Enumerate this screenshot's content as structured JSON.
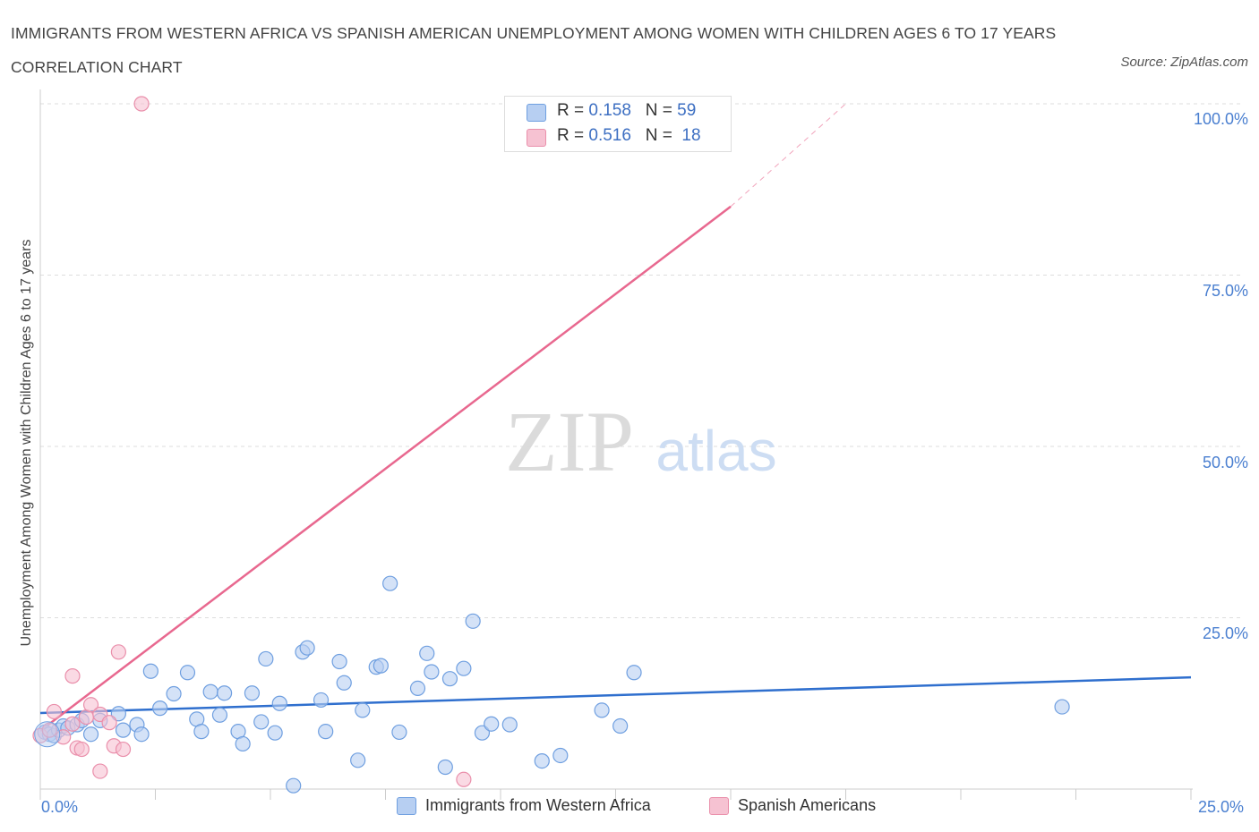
{
  "header": {
    "title": "IMMIGRANTS FROM WESTERN AFRICA VS SPANISH AMERICAN UNEMPLOYMENT AMONG WOMEN WITH CHILDREN AGES 6 TO 17 YEARS CORRELATION CHART",
    "source": "Source: ZipAtlas.com"
  },
  "legend": {
    "series1": {
      "r_label": "R = ",
      "r_value": "0.158",
      "n_label": "N = ",
      "n_value": "59"
    },
    "series2": {
      "r_label": "R = ",
      "r_value": "0.516",
      "n_label": "N = ",
      "n_value": "18"
    }
  },
  "watermark": {
    "zip": "ZIP",
    "atlas": "atlas"
  },
  "colors": {
    "blue_fill": "#b7cff2",
    "blue_stroke": "#6f9fe0",
    "blue_line": "#2f6fce",
    "pink_fill": "#f6c2d2",
    "pink_stroke": "#ea8fab",
    "pink_line": "#e8688f",
    "tick_text": "#4a7fd0",
    "grid": "#dddddd"
  },
  "chart_data": {
    "type": "scatter",
    "title": "IMMIGRANTS FROM WESTERN AFRICA VS SPANISH AMERICAN UNEMPLOYMENT AMONG WOMEN WITH CHILDREN AGES 6 TO 17 YEARS CORRELATION CHART",
    "xlabel": "",
    "ylabel": "Unemployment Among Women with Children Ages 6 to 17 years",
    "xlim": [
      0,
      25
    ],
    "ylim": [
      0,
      100
    ],
    "x_tick_labels": [
      "0.0%",
      "25.0%"
    ],
    "y_tick_labels": [
      "25.0%",
      "50.0%",
      "75.0%",
      "100.0%"
    ],
    "y_ticks": [
      25,
      50,
      75,
      100
    ],
    "grid": true,
    "legend_position": "top-center",
    "series": [
      {
        "name": "Immigrants from Western Africa",
        "color": "#6f9fe0",
        "trend": {
          "x": [
            0,
            25
          ],
          "y": [
            11.1,
            16.3
          ]
        },
        "points": [
          [
            0.1,
            8.3
          ],
          [
            0.2,
            8.0
          ],
          [
            0.3,
            7.8
          ],
          [
            0.4,
            8.6
          ],
          [
            0.5,
            9.2
          ],
          [
            0.6,
            8.9
          ],
          [
            0.8,
            9.4
          ],
          [
            0.9,
            10.0
          ],
          [
            1.1,
            8.0
          ],
          [
            1.3,
            10.0
          ],
          [
            1.7,
            11.0
          ],
          [
            1.8,
            8.6
          ],
          [
            2.1,
            9.4
          ],
          [
            2.2,
            8.0
          ],
          [
            2.4,
            17.2
          ],
          [
            2.6,
            11.8
          ],
          [
            2.9,
            13.9
          ],
          [
            3.2,
            17.0
          ],
          [
            3.4,
            10.2
          ],
          [
            3.5,
            8.4
          ],
          [
            3.7,
            14.2
          ],
          [
            3.9,
            10.8
          ],
          [
            4.0,
            14.0
          ],
          [
            4.3,
            8.4
          ],
          [
            4.4,
            6.6
          ],
          [
            4.6,
            14.0
          ],
          [
            4.8,
            9.8
          ],
          [
            4.9,
            19.0
          ],
          [
            5.1,
            8.2
          ],
          [
            5.2,
            12.5
          ],
          [
            5.5,
            0.5
          ],
          [
            5.7,
            20.0
          ],
          [
            5.8,
            20.6
          ],
          [
            6.1,
            13.0
          ],
          [
            6.2,
            8.4
          ],
          [
            6.5,
            18.6
          ],
          [
            6.6,
            15.5
          ],
          [
            6.9,
            4.2
          ],
          [
            7.0,
            11.5
          ],
          [
            7.3,
            17.8
          ],
          [
            7.4,
            18.0
          ],
          [
            7.6,
            30.0
          ],
          [
            7.8,
            8.3
          ],
          [
            8.2,
            14.7
          ],
          [
            8.4,
            19.8
          ],
          [
            8.5,
            17.1
          ],
          [
            8.8,
            3.2
          ],
          [
            8.9,
            16.1
          ],
          [
            9.2,
            17.6
          ],
          [
            9.4,
            24.5
          ],
          [
            9.6,
            8.2
          ],
          [
            9.8,
            9.5
          ],
          [
            10.2,
            9.4
          ],
          [
            10.9,
            4.1
          ],
          [
            11.3,
            4.9
          ],
          [
            12.2,
            11.5
          ],
          [
            12.6,
            9.2
          ],
          [
            12.9,
            17.0
          ],
          [
            22.2,
            12.0
          ]
        ]
      },
      {
        "name": "Spanish Americans",
        "color": "#ea8fab",
        "trend": {
          "x": [
            0,
            15
          ],
          "y": [
            8.5,
            85.0
          ]
        },
        "trend_extension": {
          "x": [
            15,
            17.5
          ],
          "y": [
            85.0,
            100.0
          ]
        },
        "points": [
          [
            0.0,
            7.8
          ],
          [
            0.2,
            8.6
          ],
          [
            0.3,
            11.3
          ],
          [
            0.5,
            7.6
          ],
          [
            0.7,
            9.5
          ],
          [
            0.7,
            16.5
          ],
          [
            0.8,
            6.0
          ],
          [
            0.9,
            5.8
          ],
          [
            1.0,
            10.5
          ],
          [
            1.1,
            12.3
          ],
          [
            1.3,
            2.6
          ],
          [
            1.3,
            10.9
          ],
          [
            1.5,
            9.7
          ],
          [
            1.6,
            6.3
          ],
          [
            1.7,
            20.0
          ],
          [
            1.8,
            5.8
          ],
          [
            2.2,
            100.0
          ],
          [
            9.2,
            1.4
          ]
        ]
      }
    ]
  },
  "axis_labels": {
    "y_label": "Unemployment Among Women with Children Ages 6 to 17 years",
    "x_min": "0.0%",
    "x_max": "25.0%",
    "y_ticks": [
      "100.0%",
      "75.0%",
      "50.0%",
      "25.0%"
    ]
  }
}
